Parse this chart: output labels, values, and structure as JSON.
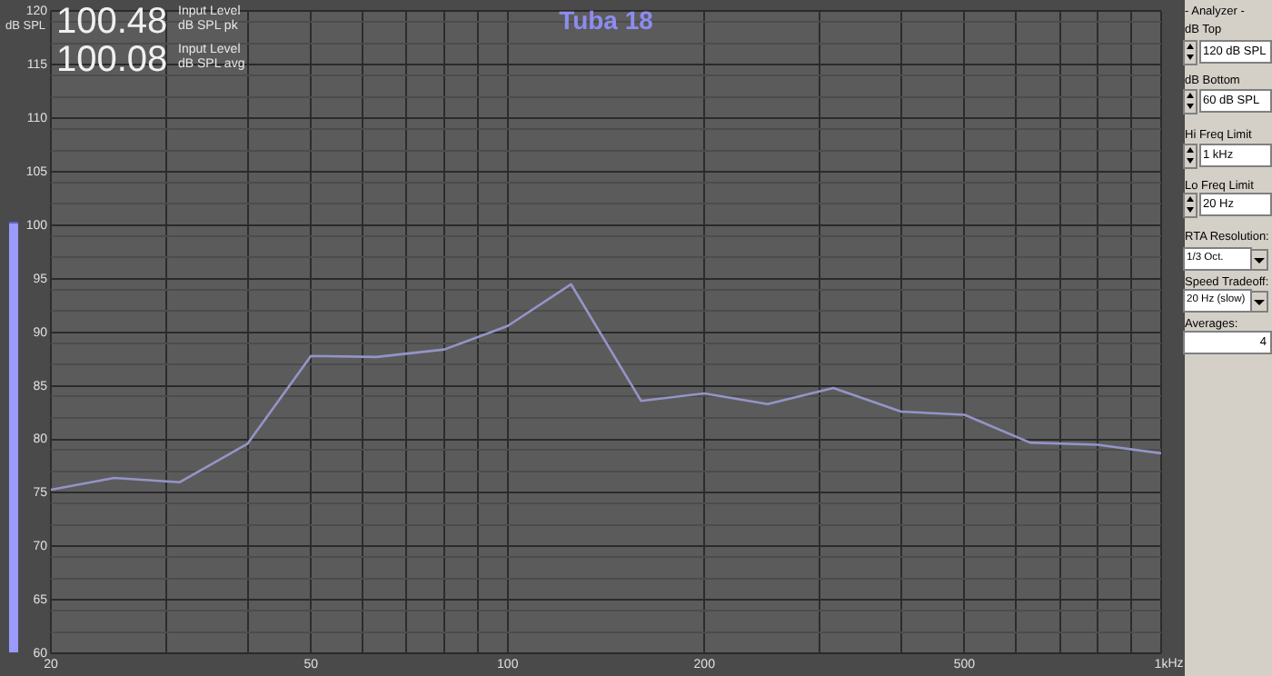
{
  "chart_data": {
    "type": "line",
    "title": "Tuba 18",
    "ylabel": "dB SPL",
    "x": [
      20,
      25,
      31.5,
      40,
      50,
      63,
      80,
      100,
      125,
      160,
      200,
      250,
      315,
      400,
      500,
      630,
      800,
      1000
    ],
    "series": [
      {
        "color": "#9494c8",
        "values": [
          75.3,
          76.4,
          76,
          79.6,
          87.8,
          87.7,
          88.4,
          90.6,
          94.5,
          83.6,
          84.3,
          83.3,
          84.8,
          82.6,
          82.3,
          79.7,
          79.5,
          78.7
        ]
      }
    ],
    "log": "x",
    "xlim": [
      20,
      1000
    ],
    "ylim": [
      60,
      120
    ],
    "xticks": [
      20,
      {
        "value": 30,
        "label": null
      },
      {
        "value": 40,
        "label": null
      },
      50,
      {
        "value": 60,
        "label": null
      },
      {
        "value": 70,
        "label": null
      },
      {
        "value": 80,
        "label": null
      },
      {
        "value": 90,
        "label": null
      },
      100,
      200,
      {
        "value": 300,
        "label": null
      },
      {
        "value": 400,
        "label": null
      },
      500,
      {
        "value": 600,
        "label": null
      },
      {
        "value": 700,
        "label": null
      },
      {
        "value": 800,
        "label": null
      },
      {
        "value": 900,
        "label": null
      },
      {
        "value": 1000,
        "label": "1k"
      }
    ],
    "xlabel": "Hz",
    "yticks": [
      60,
      65,
      70,
      75,
      80,
      85,
      90,
      95,
      100,
      105,
      110,
      115,
      120,
      {
        "value": 62,
        "label": null
      },
      {
        "value": 64,
        "label": null
      },
      {
        "value": 67,
        "label": null
      },
      {
        "value": 69,
        "label": null
      },
      {
        "value": 72,
        "label": null
      },
      {
        "value": 74,
        "label": null
      },
      {
        "value": 77,
        "label": null
      },
      {
        "value": 79,
        "label": null
      },
      {
        "value": 82,
        "label": null
      },
      {
        "value": 84,
        "label": null
      },
      {
        "value": 87,
        "label": null
      },
      {
        "value": 89,
        "label": null
      },
      {
        "value": 92,
        "label": null
      },
      {
        "value": 94,
        "label": null
      },
      {
        "value": 97,
        "label": null
      },
      {
        "value": 99,
        "label": null
      },
      {
        "value": 102,
        "label": null
      },
      {
        "value": 104,
        "label": null
      },
      {
        "value": 107,
        "label": null
      },
      {
        "value": 109,
        "label": null
      },
      {
        "value": 112,
        "label": null
      },
      {
        "value": 114,
        "label": null
      },
      {
        "value": 117,
        "label": null
      },
      {
        "value": 119,
        "label": null
      }
    ],
    "grid": true,
    "legend": false,
    "marker": "none",
    "line_style": "solid",
    "annotations": [
      "100.48",
      "Input Level",
      "dB SPL pk",
      "100.08",
      "Input Level",
      "dB SPL avg",
      "- Analyzer -",
      "dB Top",
      "120 dB SPL",
      "dB Bottom",
      "60 dB SPL",
      "Hi Freq Limit",
      "1 kHz",
      "Lo Freq Limit",
      "20 Hz",
      "RTA Resolution:",
      "1/3 Oct.",
      "Speed Tradeoff:",
      "20 Hz (slow)",
      "Averages:",
      "4"
    ]
  }
}
